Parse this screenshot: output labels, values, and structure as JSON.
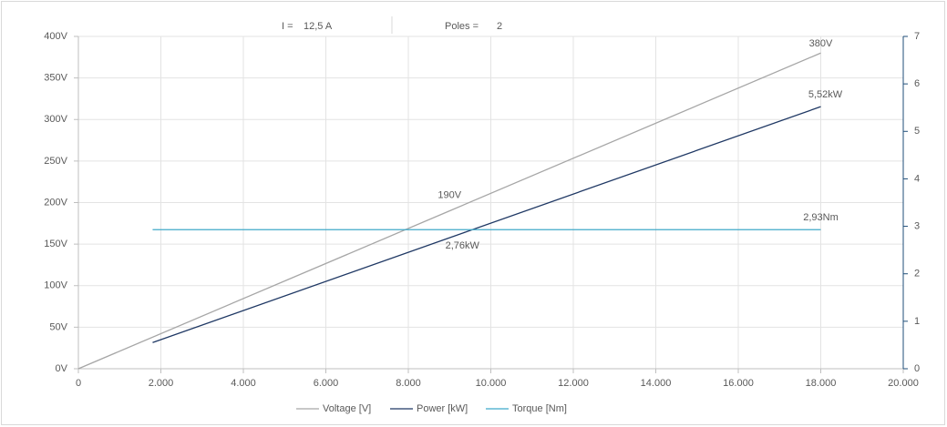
{
  "chart_data": {
    "type": "line",
    "annotations": [
      "I =",
      "12,5 A",
      "Poles =",
      "2"
    ],
    "xlim": [
      0,
      20000
    ],
    "xticks": [
      0,
      {
        "value": 2000,
        "label": "2.000"
      },
      {
        "value": 4000,
        "label": "4.000"
      },
      {
        "value": 6000,
        "label": "6.000"
      },
      {
        "value": 8000,
        "label": "8.000"
      },
      {
        "value": 10000,
        "label": "10.000"
      },
      {
        "value": 12000,
        "label": "12.000"
      },
      {
        "value": 14000,
        "label": "14.000"
      },
      {
        "value": 16000,
        "label": "16.000"
      },
      {
        "value": 18000,
        "label": "18.000"
      },
      {
        "value": 20000,
        "label": "20.000"
      }
    ],
    "ylim": [
      0,
      400
    ],
    "yticks": [
      {
        "value": 0,
        "label": "0V"
      },
      {
        "value": 50,
        "label": "50V"
      },
      {
        "value": 100,
        "label": "100V"
      },
      {
        "value": 150,
        "label": "150V"
      },
      {
        "value": 200,
        "label": "200V"
      },
      {
        "value": 250,
        "label": "250V"
      },
      {
        "value": 300,
        "label": "300V"
      },
      {
        "value": 350,
        "label": "350V"
      },
      {
        "value": 400,
        "label": "400V"
      }
    ],
    "y2lim": [
      0,
      7
    ],
    "y2ticks": [
      0,
      1,
      2,
      3,
      4,
      5,
      6,
      7
    ],
    "grid": true,
    "legend": "bottom",
    "series": [
      {
        "name": "Voltage [V]",
        "color": "#a6a6a6",
        "label_color": "#595959",
        "x": [
          0,
          9000,
          18000
        ],
        "values": [
          0,
          190,
          380
        ],
        "value_labels": [
          null,
          "190V",
          "380V"
        ]
      },
      {
        "name": "Power [kW]",
        "color": "#1f3864",
        "label_color": "#1f3864",
        "axis": "y2",
        "x": [
          1800,
          9000,
          18000
        ],
        "values": [
          0.552,
          2.76,
          5.52
        ],
        "value_labels": [
          null,
          "2,76kW",
          "5,52kW"
        ]
      },
      {
        "name": "Torque [Nm]",
        "color": "#3fa9c9",
        "label_color": "#2e75b6",
        "axis": "y2",
        "x": [
          1800,
          18000
        ],
        "values": [
          2.93,
          2.93
        ],
        "value_labels": [
          null,
          "2,93Nm"
        ]
      }
    ]
  }
}
